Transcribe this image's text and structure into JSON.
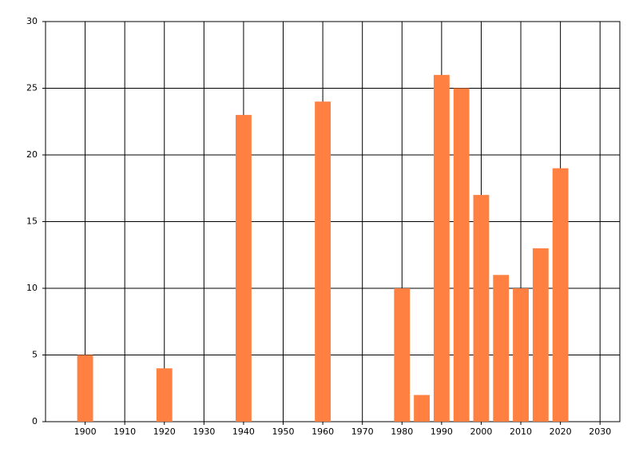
{
  "chart_data": {
    "type": "bar",
    "x": [
      1900,
      1920,
      1940,
      1960,
      1980,
      1985,
      1990,
      1995,
      2000,
      2005,
      2010,
      2015,
      2020
    ],
    "values": [
      5,
      4,
      23,
      24,
      10,
      2,
      26,
      25,
      17,
      11,
      10,
      13,
      19
    ],
    "color": "#ff8040",
    "xlim": [
      1890,
      2035
    ],
    "xticks": [
      1900,
      1910,
      1920,
      1930,
      1940,
      1950,
      1960,
      1970,
      1980,
      1990,
      2000,
      2010,
      2020,
      2030
    ],
    "ylim": [
      0,
      30
    ],
    "yticks": [
      0,
      5,
      10,
      15,
      20,
      25,
      30
    ],
    "grid": true
  }
}
